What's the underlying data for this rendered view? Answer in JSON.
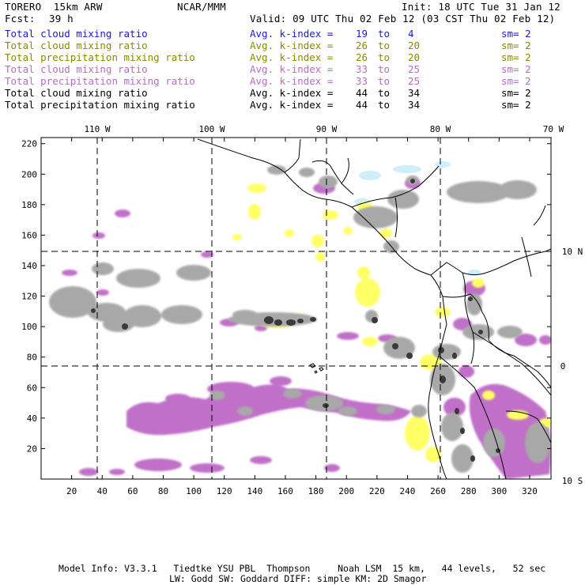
{
  "header": {
    "model": "TORERO  15km ARW",
    "center": "NCAR/MMM",
    "init": "Init: 18 UTC Tue 31 Jan 12",
    "fcst_label": "Fcst:",
    "fcst_value": "39 h",
    "valid": "Valid: 09 UTC Thu 02 Feb 12 (03 CST Thu 02 Feb 12)"
  },
  "legend": [
    {
      "field": "Total cloud mixing ratio",
      "kindex": "Avg. k-index =",
      "from": "19",
      "to_word": "to",
      "to": "4",
      "sm": "sm= 2",
      "color": "#1a1ad6"
    },
    {
      "field": "Total cloud mixing ratio",
      "kindex": "Avg. k-index =",
      "from": "26",
      "to_word": "to",
      "to": "20",
      "sm": "sm= 2",
      "color": "#8a8a00"
    },
    {
      "field": "Total precipitation mixing ratio",
      "kindex": "Avg. k-index =",
      "from": "26",
      "to_word": "to",
      "to": "20",
      "sm": "sm= 2",
      "color": "#8a8a00"
    },
    {
      "field": "Total cloud mixing ratio",
      "kindex": "Avg. k-index =",
      "from": "33",
      "to_word": "to",
      "to": "25",
      "sm": "sm= 2",
      "color": "#b56ec6"
    },
    {
      "field": "Total precipitation mixing ratio",
      "kindex": "Avg. k-index =",
      "from": "33",
      "to_word": "to",
      "to": "25",
      "sm": "sm= 2",
      "color": "#b56ec6"
    },
    {
      "field": "Total cloud mixing ratio",
      "kindex": "Avg. k-index =",
      "from": "44",
      "to_word": "to",
      "to": "34",
      "sm": "sm= 2",
      "color": "#000000"
    },
    {
      "field": "Total precipitation mixing ratio",
      "kindex": "Avg. k-index =",
      "from": "44",
      "to_word": "to",
      "to": "34",
      "sm": "sm= 2",
      "color": "#000000"
    }
  ],
  "map": {
    "top_labels": [
      "110 W",
      "100 W",
      "90 W",
      "80 W",
      "70 W"
    ],
    "right_labels": [
      "10 N",
      "0",
      "10 S"
    ],
    "y_ticks": [
      "220",
      "200",
      "180",
      "160",
      "140",
      "120",
      "100",
      "80",
      "60",
      "40",
      "20"
    ],
    "x_ticks": [
      "20",
      "40",
      "60",
      "80",
      "100",
      "120",
      "140",
      "160",
      "180",
      "200",
      "220",
      "240",
      "260",
      "280",
      "300",
      "320"
    ],
    "colors": {
      "gray": "#a8a8a8",
      "dark": "#3a3a3a",
      "yellow": "#ffff66",
      "purple": "#c070c8",
      "lightblue": "#cdeefa"
    }
  },
  "footer": {
    "line1": "Model Info: V3.3.1   Tiedtke YSU PBL  Thompson     Noah LSM  15 km,   44 levels,   52 sec",
    "line2": "LW: Godd SW: Goddard DIFF: simple KM: 2D Smagor"
  }
}
